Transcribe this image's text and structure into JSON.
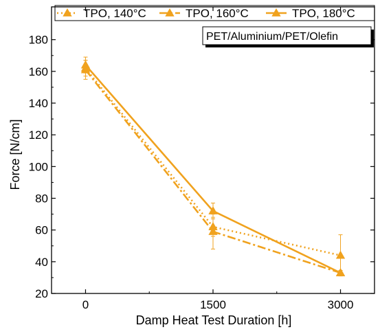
{
  "chart_data": {
    "type": "line",
    "xlabel": "Damp Heat Test Duration [h]",
    "ylabel": "Force [N/cm]",
    "annotation": "PET/Aluminium/PET/Olefin",
    "xlim": [
      -400,
      3400
    ],
    "ylim": [
      20,
      192
    ],
    "xticks": [
      0,
      1500,
      3000
    ],
    "yticks": [
      20,
      40,
      60,
      80,
      100,
      120,
      140,
      160,
      180
    ],
    "legend_position": "top",
    "grid": false,
    "color": "#F0A21E",
    "series": [
      {
        "name": "TPO, 140°C",
        "line_style": "dotted",
        "x": [
          0,
          1500,
          3000
        ],
        "y": [
          162,
          62,
          44
        ],
        "error": [
          5,
          6,
          13
        ]
      },
      {
        "name": "TPO, 160°C",
        "line_style": "dash-dot",
        "x": [
          0,
          1500,
          3000
        ],
        "y": [
          161,
          59,
          33
        ],
        "error": [
          6,
          11,
          1.5
        ]
      },
      {
        "name": "TPO, 180°C",
        "line_style": "solid",
        "x": [
          0,
          1500,
          3000
        ],
        "y": [
          164,
          72,
          33
        ],
        "error": [
          5,
          5,
          1.5
        ]
      }
    ]
  }
}
